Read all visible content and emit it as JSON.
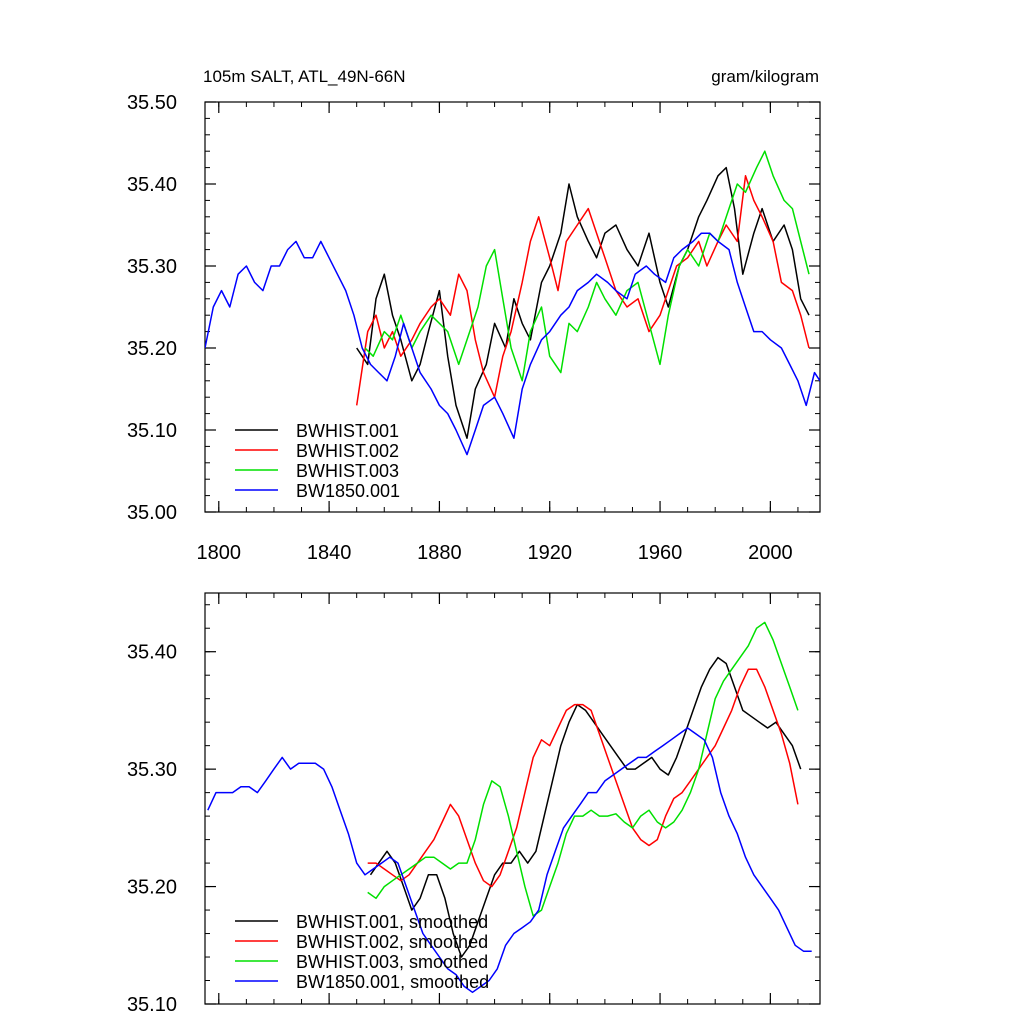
{
  "chart_data": [
    {
      "type": "line",
      "title": "105m SALT, ATL_49N-66N",
      "units": "gram/kilogram",
      "xlabel": "",
      "ylabel": "",
      "xlim": [
        1795,
        2018
      ],
      "ylim": [
        35.0,
        35.5
      ],
      "yticks": [
        "35.00",
        "35.10",
        "35.20",
        "35.30",
        "35.40",
        "35.50"
      ],
      "xticks": [
        "1800",
        "1840",
        "1880",
        "1920",
        "1960",
        "2000"
      ],
      "legend": {
        "position": "bottom-left"
      },
      "series": [
        {
          "name": "BWHIST.001",
          "color": "#000000",
          "x": [
            1850,
            1854,
            1857,
            1860,
            1863,
            1866,
            1870,
            1873,
            1876,
            1880,
            1883,
            1886,
            1890,
            1893,
            1897,
            1900,
            1904,
            1907,
            1910,
            1913,
            1917,
            1920,
            1924,
            1927,
            1930,
            1934,
            1937,
            1940,
            1944,
            1948,
            1952,
            1956,
            1960,
            1963,
            1967,
            1970,
            1974,
            1977,
            1981,
            1984,
            1987,
            1990,
            1994,
            1997,
            2001,
            2005,
            2008,
            2011,
            2014
          ],
          "values": [
            35.2,
            35.18,
            35.26,
            35.29,
            35.24,
            35.21,
            35.16,
            35.18,
            35.22,
            35.27,
            35.19,
            35.13,
            35.09,
            35.15,
            35.18,
            35.23,
            35.2,
            35.26,
            35.23,
            35.21,
            35.28,
            35.3,
            35.34,
            35.4,
            35.36,
            35.33,
            35.31,
            35.34,
            35.35,
            35.32,
            35.3,
            35.34,
            35.28,
            35.25,
            35.3,
            35.32,
            35.36,
            35.38,
            35.41,
            35.42,
            35.37,
            35.29,
            35.34,
            35.37,
            35.33,
            35.35,
            35.32,
            35.26,
            35.24
          ]
        },
        {
          "name": "BWHIST.002",
          "color": "#ff0000",
          "x": [
            1850,
            1854,
            1857,
            1860,
            1863,
            1866,
            1870,
            1873,
            1877,
            1880,
            1884,
            1887,
            1890,
            1893,
            1896,
            1900,
            1903,
            1906,
            1910,
            1913,
            1916,
            1920,
            1923,
            1926,
            1930,
            1934,
            1937,
            1940,
            1944,
            1948,
            1952,
            1956,
            1960,
            1963,
            1966,
            1970,
            1974,
            1977,
            1981,
            1984,
            1988,
            1991,
            1994,
            1997,
            2001,
            2004,
            2008,
            2011,
            2014
          ],
          "values": [
            35.13,
            35.22,
            35.24,
            35.2,
            35.22,
            35.19,
            35.21,
            35.23,
            35.25,
            35.26,
            35.24,
            35.29,
            35.27,
            35.21,
            35.17,
            35.14,
            35.19,
            35.22,
            35.28,
            35.33,
            35.36,
            35.31,
            35.27,
            35.33,
            35.35,
            35.37,
            35.34,
            35.31,
            35.27,
            35.25,
            35.26,
            35.22,
            35.24,
            35.27,
            35.3,
            35.31,
            35.33,
            35.3,
            35.33,
            35.35,
            35.33,
            35.41,
            35.38,
            35.36,
            35.33,
            35.28,
            35.27,
            35.24,
            35.2
          ]
        },
        {
          "name": "BWHIST.003",
          "color": "#00e000",
          "x": [
            1853,
            1856,
            1860,
            1863,
            1866,
            1870,
            1873,
            1877,
            1880,
            1883,
            1887,
            1890,
            1894,
            1897,
            1900,
            1903,
            1906,
            1910,
            1913,
            1917,
            1920,
            1924,
            1927,
            1930,
            1934,
            1937,
            1940,
            1944,
            1948,
            1952,
            1956,
            1960,
            1963,
            1967,
            1970,
            1974,
            1978,
            1981,
            1985,
            1988,
            1991,
            1995,
            1998,
            2001,
            2005,
            2008,
            2011,
            2014
          ],
          "values": [
            35.2,
            35.19,
            35.22,
            35.21,
            35.24,
            35.2,
            35.22,
            35.24,
            35.23,
            35.22,
            35.18,
            35.21,
            35.25,
            35.3,
            35.32,
            35.26,
            35.2,
            35.16,
            35.22,
            35.25,
            35.19,
            35.17,
            35.23,
            35.22,
            35.25,
            35.28,
            35.26,
            35.24,
            35.27,
            35.28,
            35.23,
            35.18,
            35.24,
            35.3,
            35.32,
            35.3,
            35.34,
            35.33,
            35.37,
            35.4,
            35.39,
            35.42,
            35.44,
            35.41,
            35.38,
            35.37,
            35.33,
            35.29
          ]
        },
        {
          "name": "BW1850.001",
          "color": "#0000ff",
          "x": [
            1795,
            1798,
            1801,
            1804,
            1807,
            1810,
            1813,
            1816,
            1819,
            1822,
            1825,
            1828,
            1831,
            1834,
            1837,
            1840,
            1843,
            1846,
            1849,
            1852,
            1855,
            1858,
            1861,
            1864,
            1867,
            1870,
            1873,
            1877,
            1880,
            1883,
            1886,
            1890,
            1893,
            1896,
            1900,
            1903,
            1907,
            1910,
            1913,
            1917,
            1920,
            1924,
            1927,
            1930,
            1934,
            1937,
            1941,
            1944,
            1948,
            1951,
            1955,
            1958,
            1962,
            1965,
            1968,
            1972,
            1975,
            1978,
            1981,
            1985,
            1988,
            1991,
            1994,
            1997,
            2000,
            2004,
            2007,
            2010,
            2013,
            2016,
            2018
          ],
          "values": [
            35.2,
            35.25,
            35.27,
            35.25,
            35.29,
            35.3,
            35.28,
            35.27,
            35.3,
            35.3,
            35.32,
            35.33,
            35.31,
            35.31,
            35.33,
            35.31,
            35.29,
            35.27,
            35.24,
            35.2,
            35.18,
            35.17,
            35.16,
            35.19,
            35.23,
            35.2,
            35.17,
            35.15,
            35.13,
            35.12,
            35.1,
            35.07,
            35.1,
            35.13,
            35.14,
            35.12,
            35.09,
            35.15,
            35.18,
            35.21,
            35.22,
            35.24,
            35.25,
            35.27,
            35.28,
            35.29,
            35.28,
            35.27,
            35.26,
            35.29,
            35.3,
            35.29,
            35.28,
            35.31,
            35.32,
            35.33,
            35.34,
            35.34,
            35.33,
            35.32,
            35.28,
            35.25,
            35.22,
            35.22,
            35.21,
            35.2,
            35.18,
            35.16,
            35.13,
            35.17,
            35.16
          ]
        }
      ]
    },
    {
      "type": "line",
      "title": "",
      "xlabel": "",
      "ylabel": "",
      "xlim": [
        1795,
        2018
      ],
      "ylim": [
        35.1,
        35.45
      ],
      "yticks": [
        "35.10",
        "35.20",
        "35.30",
        "35.40"
      ],
      "legend": {
        "position": "bottom-left"
      },
      "series": [
        {
          "name": "BWHIST.001, smoothed",
          "color": "#000000",
          "x": [
            1855,
            1858,
            1861,
            1864,
            1867,
            1870,
            1873,
            1876,
            1879,
            1882,
            1885,
            1888,
            1891,
            1894,
            1897,
            1900,
            1903,
            1906,
            1909,
            1912,
            1915,
            1918,
            1921,
            1924,
            1927,
            1930,
            1933,
            1936,
            1939,
            1942,
            1945,
            1948,
            1951,
            1954,
            1957,
            1960,
            1963,
            1966,
            1969,
            1972,
            1975,
            1978,
            1981,
            1984,
            1987,
            1990,
            1993,
            1996,
            1999,
            2002,
            2005,
            2008,
            2011
          ],
          "values": [
            35.21,
            35.22,
            35.23,
            35.22,
            35.2,
            35.18,
            35.19,
            35.21,
            35.21,
            35.19,
            35.16,
            35.14,
            35.15,
            35.17,
            35.19,
            35.21,
            35.22,
            35.22,
            35.23,
            35.22,
            35.23,
            35.26,
            35.29,
            35.32,
            35.34,
            35.355,
            35.35,
            35.34,
            35.33,
            35.32,
            35.31,
            35.3,
            35.3,
            35.305,
            35.31,
            35.3,
            35.295,
            35.31,
            35.33,
            35.35,
            35.37,
            35.385,
            35.395,
            35.39,
            35.37,
            35.35,
            35.345,
            35.34,
            35.335,
            35.34,
            35.33,
            35.32,
            35.3
          ]
        },
        {
          "name": "BWHIST.002, smoothed",
          "color": "#ff0000",
          "x": [
            1854,
            1857,
            1860,
            1863,
            1866,
            1869,
            1872,
            1875,
            1878,
            1881,
            1884,
            1887,
            1890,
            1893,
            1896,
            1899,
            1902,
            1905,
            1908,
            1911,
            1914,
            1917,
            1920,
            1923,
            1926,
            1929,
            1932,
            1935,
            1938,
            1941,
            1944,
            1947,
            1950,
            1953,
            1956,
            1959,
            1962,
            1965,
            1968,
            1971,
            1974,
            1977,
            1980,
            1983,
            1986,
            1989,
            1992,
            1995,
            1998,
            2001,
            2004,
            2007,
            2010
          ],
          "values": [
            35.22,
            35.22,
            35.215,
            35.21,
            35.205,
            35.21,
            35.22,
            35.23,
            35.24,
            35.255,
            35.27,
            35.26,
            35.24,
            35.22,
            35.205,
            35.2,
            35.21,
            35.23,
            35.25,
            35.28,
            35.31,
            35.325,
            35.32,
            35.335,
            35.35,
            35.355,
            35.355,
            35.35,
            35.33,
            35.31,
            35.29,
            35.27,
            35.25,
            35.24,
            35.235,
            35.24,
            35.26,
            35.275,
            35.28,
            35.29,
            35.3,
            35.31,
            35.32,
            35.335,
            35.35,
            35.37,
            35.385,
            35.385,
            35.37,
            35.35,
            35.33,
            35.305,
            35.27
          ]
        },
        {
          "name": "BWHIST.003, smoothed",
          "color": "#00e000",
          "x": [
            1854,
            1857,
            1860,
            1863,
            1866,
            1869,
            1872,
            1875,
            1878,
            1881,
            1884,
            1887,
            1890,
            1893,
            1896,
            1899,
            1902,
            1905,
            1908,
            1911,
            1914,
            1917,
            1920,
            1923,
            1926,
            1929,
            1932,
            1935,
            1938,
            1941,
            1944,
            1947,
            1950,
            1953,
            1956,
            1959,
            1962,
            1965,
            1968,
            1971,
            1974,
            1977,
            1980,
            1983,
            1986,
            1989,
            1992,
            1995,
            1998,
            2001,
            2004,
            2007,
            2010
          ],
          "values": [
            35.195,
            35.19,
            35.2,
            35.205,
            35.21,
            35.215,
            35.22,
            35.225,
            35.225,
            35.22,
            35.215,
            35.22,
            35.22,
            35.24,
            35.27,
            35.29,
            35.285,
            35.26,
            35.23,
            35.2,
            35.175,
            35.18,
            35.2,
            35.22,
            35.245,
            35.26,
            35.26,
            35.265,
            35.26,
            35.26,
            35.262,
            35.255,
            35.25,
            35.26,
            35.265,
            35.255,
            35.25,
            35.255,
            35.265,
            35.28,
            35.3,
            35.33,
            35.36,
            35.375,
            35.385,
            35.395,
            35.405,
            35.42,
            35.425,
            35.41,
            35.39,
            35.37,
            35.35
          ]
        },
        {
          "name": "BW1850.001, smoothed",
          "color": "#0000ff",
          "x": [
            1796,
            1799,
            1802,
            1805,
            1808,
            1811,
            1814,
            1817,
            1820,
            1823,
            1826,
            1829,
            1832,
            1835,
            1838,
            1841,
            1844,
            1847,
            1850,
            1853,
            1856,
            1859,
            1862,
            1865,
            1868,
            1871,
            1874,
            1877,
            1880,
            1883,
            1886,
            1889,
            1892,
            1895,
            1898,
            1901,
            1904,
            1907,
            1910,
            1913,
            1916,
            1919,
            1922,
            1925,
            1928,
            1931,
            1934,
            1937,
            1940,
            1943,
            1946,
            1949,
            1952,
            1955,
            1958,
            1961,
            1964,
            1967,
            1970,
            1973,
            1976,
            1979,
            1982,
            1985,
            1988,
            1991,
            1994,
            1997,
            2000,
            2003,
            2006,
            2009,
            2012,
            2015
          ],
          "values": [
            35.265,
            35.28,
            35.28,
            35.28,
            35.285,
            35.285,
            35.28,
            35.29,
            35.3,
            35.31,
            35.3,
            35.305,
            35.305,
            35.305,
            35.3,
            35.285,
            35.265,
            35.245,
            35.22,
            35.21,
            35.215,
            35.22,
            35.225,
            35.22,
            35.2,
            35.18,
            35.16,
            35.15,
            35.14,
            35.13,
            35.125,
            35.115,
            35.11,
            35.115,
            35.12,
            35.13,
            35.15,
            35.16,
            35.165,
            35.17,
            35.18,
            35.21,
            35.23,
            35.25,
            35.26,
            35.27,
            35.28,
            35.28,
            35.29,
            35.295,
            35.3,
            35.305,
            35.31,
            35.31,
            35.315,
            35.32,
            35.325,
            35.33,
            35.335,
            35.33,
            35.325,
            35.31,
            35.28,
            35.26,
            35.245,
            35.225,
            35.21,
            35.2,
            35.19,
            35.18,
            35.165,
            35.15,
            35.145,
            35.145
          ]
        }
      ]
    }
  ]
}
